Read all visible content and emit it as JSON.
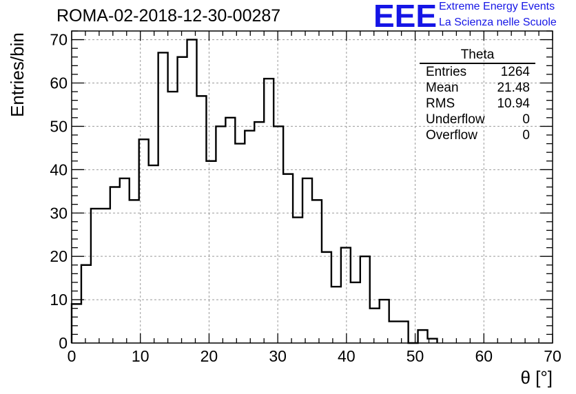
{
  "header": {
    "title": "ROMA-02-2018-12-30-00287",
    "logo_mark": "EEE",
    "logo_line1": "Extreme Energy Events",
    "logo_line2": "La Scienza nelle Scuole",
    "accent_color": "#1515e6"
  },
  "stats_box": {
    "title": "Theta",
    "rows": [
      {
        "label": "Entries",
        "value": "1264"
      },
      {
        "label": "Mean",
        "value": "21.48"
      },
      {
        "label": "RMS",
        "value": "10.94"
      },
      {
        "label": "Underflow",
        "value": "0"
      },
      {
        "label": "Overflow",
        "value": "0"
      }
    ]
  },
  "chart_data": {
    "type": "bar",
    "histogram_style": "step",
    "title": "ROMA-02-2018-12-30-00287",
    "xlabel": "θ [°]",
    "ylabel": "Entries/bin",
    "xlim": [
      0,
      70
    ],
    "ylim": [
      0,
      72
    ],
    "x_ticks": [
      0,
      10,
      20,
      30,
      40,
      50,
      60,
      70
    ],
    "y_ticks": [
      0,
      10,
      20,
      30,
      40,
      50,
      60,
      70
    ],
    "grid": true,
    "line_color": "#000000",
    "bin_width": 1.4,
    "bin_edges_start": 0,
    "values": [
      9,
      18,
      31,
      31,
      36,
      38,
      33,
      47,
      41,
      67,
      58,
      66,
      70,
      57,
      42,
      50,
      52,
      46,
      49,
      51,
      61,
      50,
      39,
      29,
      38,
      33,
      21,
      13,
      22,
      14,
      20,
      8,
      10,
      5,
      5,
      0,
      3,
      1,
      0,
      0,
      0,
      0,
      0,
      0,
      0,
      0,
      0,
      0,
      0,
      0
    ]
  }
}
